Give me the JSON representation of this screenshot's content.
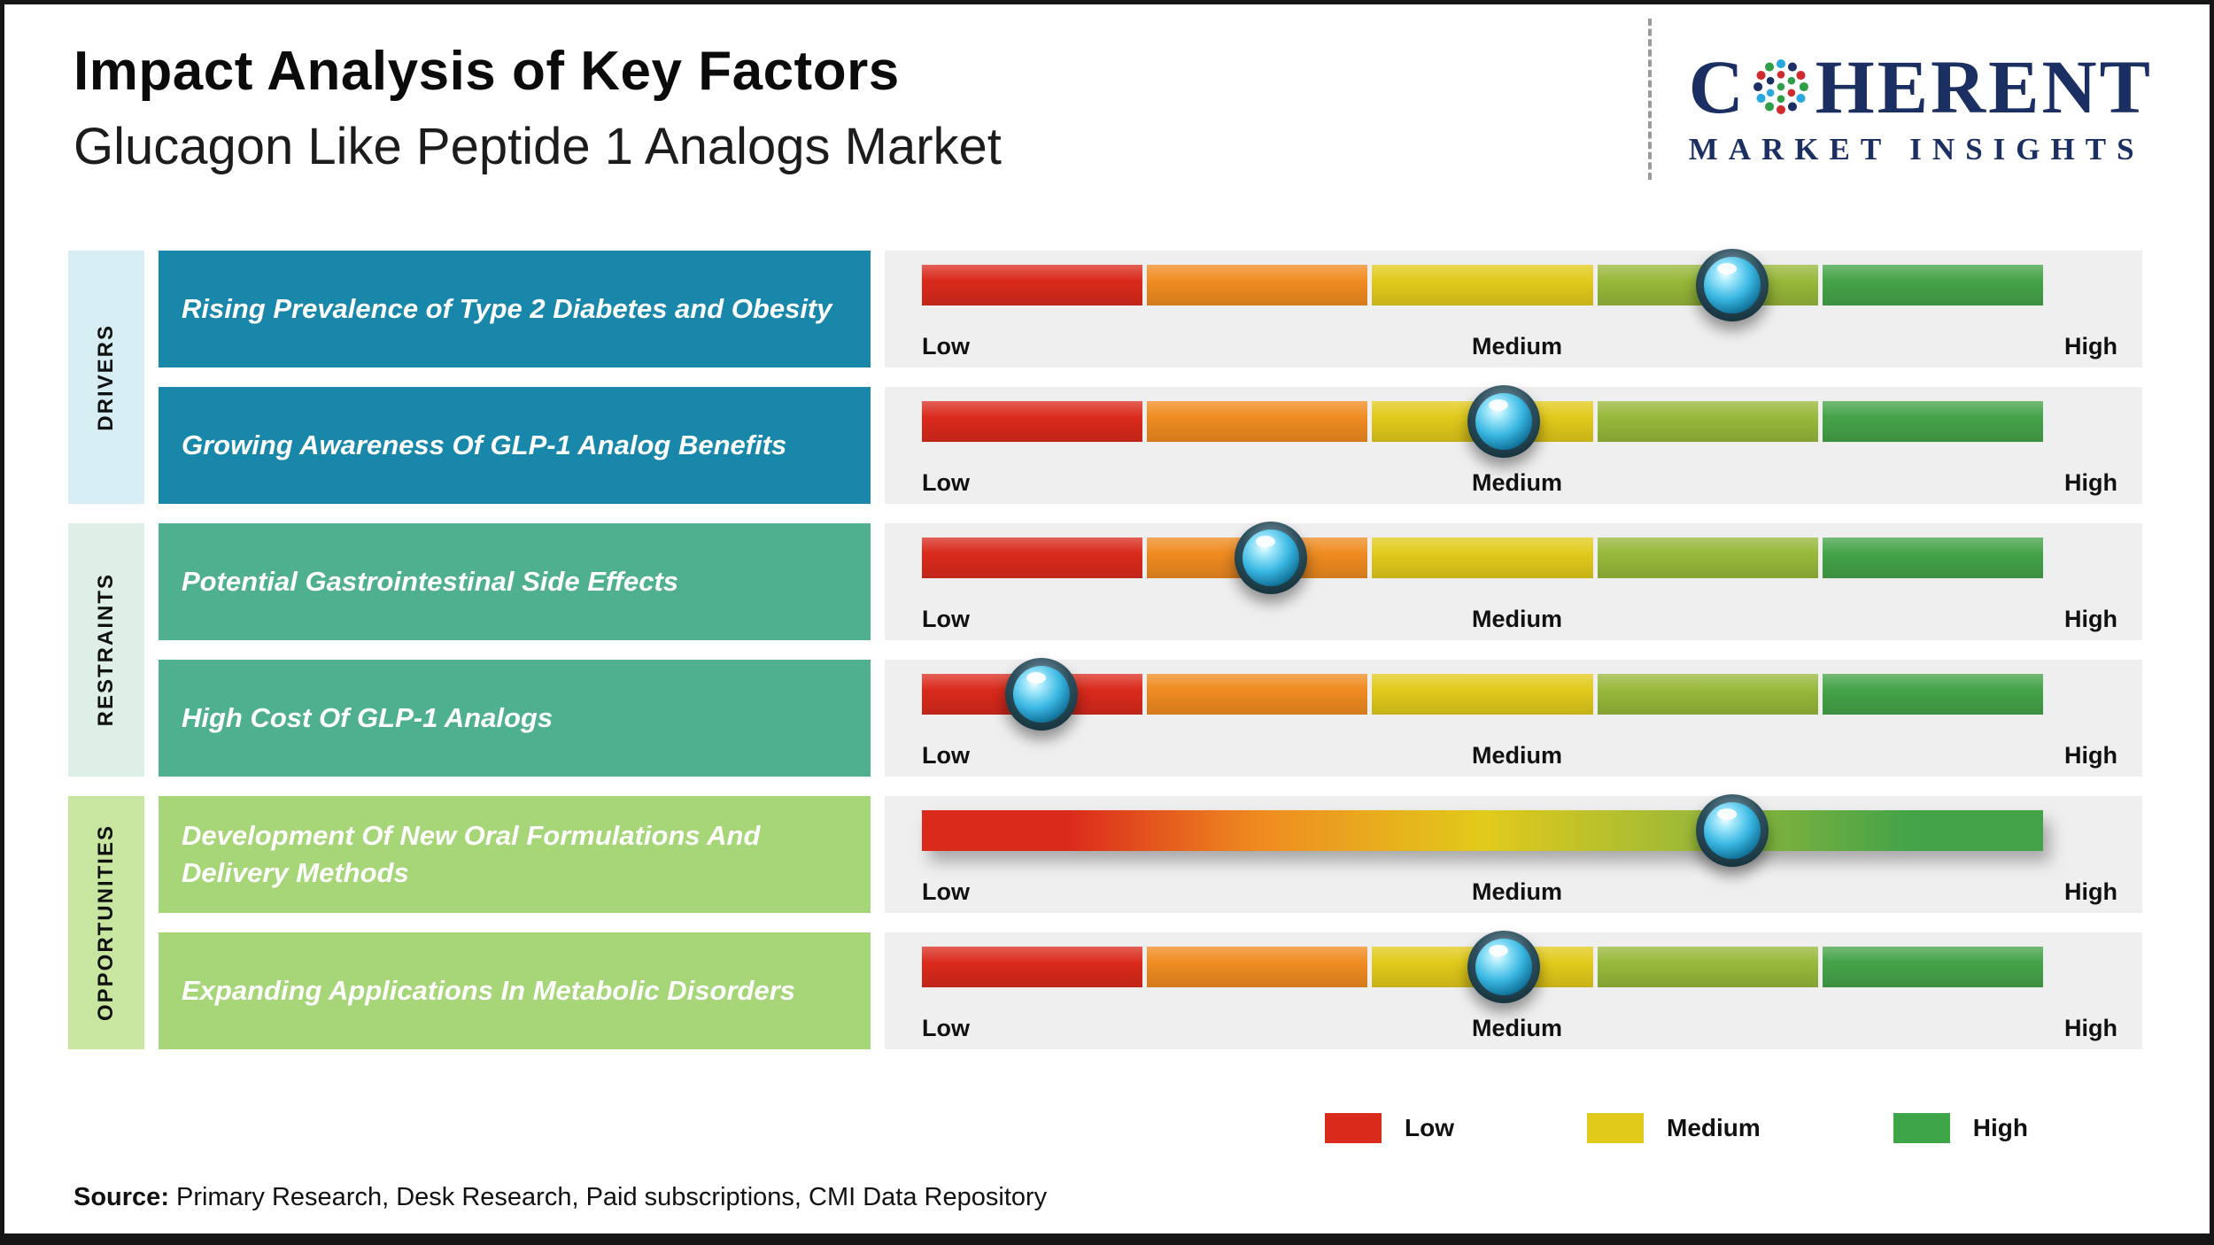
{
  "header": {
    "title": "Impact Analysis of Key Factors",
    "subtitle": "Glucagon Like Peptide 1 Analogs Market",
    "logo": {
      "line1_prefix": "C",
      "line1_suffix": "HERENT",
      "line2": "MARKET INSIGHTS",
      "brand_color": "#1b2f63"
    }
  },
  "scale_labels": [
    "Low",
    "Medium",
    "High"
  ],
  "segment_colors": [
    "#da2a1c",
    "#ef8b20",
    "#e2ca1b",
    "#97b83a",
    "#44a348"
  ],
  "groups": [
    {
      "name": "DRIVERS",
      "band_color": "#d7edf4",
      "box_color": "#1987a9",
      "factors": [
        {
          "label": "Rising Prevalence of Type 2 Diabetes and Obesity",
          "marker_pos": 72.3,
          "continuous": false
        },
        {
          "label": "Growing Awareness Of GLP-1 Analog Benefits",
          "marker_pos": 51.9,
          "continuous": false
        }
      ]
    },
    {
      "name": "RESTRAINTS",
      "band_color": "#ddefe6",
      "box_color": "#4fb090",
      "factors": [
        {
          "label": "Potential Gastrointestinal Side Effects",
          "marker_pos": 31.1,
          "continuous": false
        },
        {
          "label": "High Cost Of GLP-1 Analogs",
          "marker_pos": 10.7,
          "continuous": false
        }
      ]
    },
    {
      "name": "OPPORTUNITIES",
      "band_color": "#c8e6a0",
      "box_color": "#a6d677",
      "factors": [
        {
          "label": "Development Of New Oral Formulations And Delivery Methods",
          "marker_pos": 72.3,
          "continuous": true
        },
        {
          "label": "Expanding Applications In Metabolic Disorders",
          "marker_pos": 51.9,
          "continuous": false
        }
      ]
    }
  ],
  "legend": [
    {
      "label": "Low",
      "color": "#da2a1c"
    },
    {
      "label": "Medium",
      "color": "#e2ca1b"
    },
    {
      "label": "High",
      "color": "#3ea649"
    }
  ],
  "source": {
    "prefix": "Source:",
    "text": " Primary Research, Desk Research, Paid subscriptions, CMI Data Repository"
  },
  "chart_data": {
    "type": "bar",
    "title": "Impact Analysis of Key Factors",
    "subtitle": "Glucagon Like Peptide 1 Analogs Market",
    "scale": [
      "Low",
      "Medium",
      "High"
    ],
    "categories": [
      "Rising Prevalence of Type 2 Diabetes and Obesity",
      "Growing Awareness Of GLP-1 Analog Benefits",
      "Potential Gastrointestinal Side Effects",
      "High Cost Of GLP-1 Analogs",
      "Development Of New Oral Formulations And Delivery Methods",
      "Expanding Applications In Metabolic Disorders"
    ],
    "groups": [
      "Drivers",
      "Drivers",
      "Restraints",
      "Restraints",
      "Opportunities",
      "Opportunities"
    ],
    "values_pct_of_scale": [
      72.3,
      51.9,
      31.1,
      10.7,
      72.3,
      51.9
    ],
    "impact_levels": [
      "Medium-High",
      "Medium",
      "Low-Medium",
      "Low",
      "Medium-High",
      "Medium"
    ],
    "xlim": [
      "Low",
      "High"
    ],
    "legend_position": "bottom-right",
    "grid": false
  }
}
